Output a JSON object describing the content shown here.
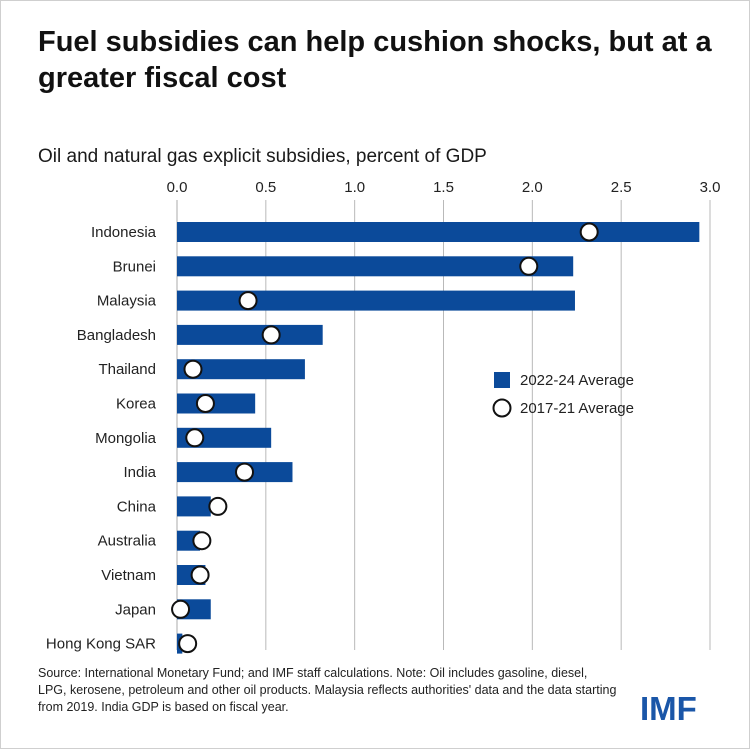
{
  "title": "Fuel subsidies can help cushion shocks, but at a greater fiscal cost",
  "source_note": "Source: International Monetary Fund; and IMF staff calculations. Note: Oil includes gasoline, diesel, LPG, kerosene, petroleum and other oil products.  Malaysia reflects authorities' data and the data starting from 2019. India GDP is based on fiscal year.",
  "logo_text": "IMF",
  "colors": {
    "bar": "#0b4a9a",
    "marker_fill": "#ffffff",
    "marker_stroke": "#111111",
    "grid": "#b9b9b9"
  },
  "chart_data": {
    "type": "bar",
    "orientation": "horizontal",
    "title": "Oil and natural gas explicit subsidies, percent of GDP",
    "xlim": [
      0,
      3.0
    ],
    "xticks": [
      "0.0",
      "0.5",
      "1.0",
      "1.5",
      "2.0",
      "2.5",
      "3.0"
    ],
    "categories": [
      "Indonesia",
      "Brunei",
      "Malaysia",
      "Bangladesh",
      "Thailand",
      "Korea",
      "Mongolia",
      "India",
      "China",
      "Australia",
      "Vietnam",
      "Japan",
      "Hong Kong SAR"
    ],
    "series": [
      {
        "name": "2022-24 Average",
        "kind": "bar",
        "values": [
          2.94,
          2.23,
          2.24,
          0.82,
          0.72,
          0.44,
          0.53,
          0.65,
          0.19,
          0.13,
          0.16,
          0.19,
          0.03
        ]
      },
      {
        "name": "2017-21 Average",
        "kind": "marker",
        "values": [
          2.32,
          1.98,
          0.4,
          0.53,
          0.09,
          0.16,
          0.1,
          0.38,
          0.23,
          0.14,
          0.13,
          0.02,
          0.06
        ]
      }
    ],
    "legend": [
      "2022-24 Average",
      "2017-21 Average"
    ],
    "legend_position": "right-middle"
  }
}
